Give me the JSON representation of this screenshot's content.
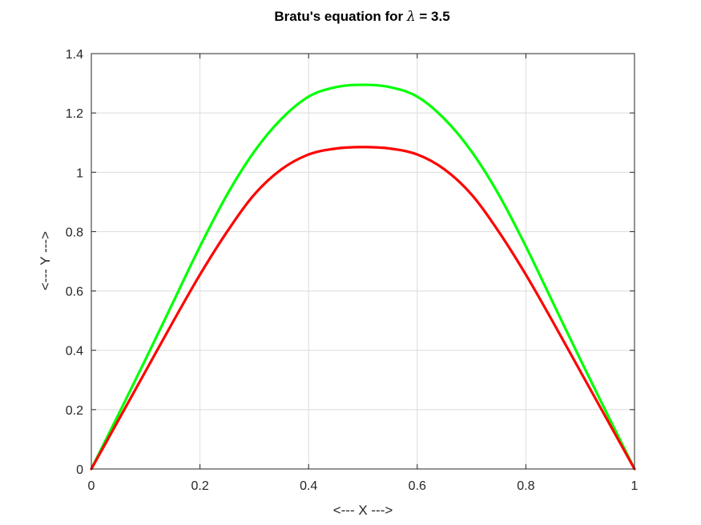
{
  "chart_data": {
    "type": "line",
    "title_prefix": "Bratu's equation for ",
    "title_symbol": "λ",
    "title_suffix": " = 3.5",
    "xlabel": "<--- X --->",
    "ylabel": "<--- Y --->",
    "xlim": [
      0,
      1
    ],
    "ylim": [
      0,
      1.4
    ],
    "xticks": [
      0,
      0.2,
      0.4,
      0.6,
      0.8,
      1
    ],
    "xtick_labels": [
      "0",
      "0.2",
      "0.4",
      "0.6",
      "0.8",
      "1"
    ],
    "yticks": [
      0,
      0.2,
      0.4,
      0.6,
      0.8,
      1,
      1.2,
      1.4
    ],
    "ytick_labels": [
      "0",
      "0.2",
      "0.4",
      "0.6",
      "0.8",
      "1",
      "1.2",
      "1.4"
    ],
    "grid": true,
    "series": [
      {
        "color": "#00ff00",
        "x": [
          0,
          0.05,
          0.1,
          0.15,
          0.2,
          0.25,
          0.3,
          0.35,
          0.4,
          0.45,
          0.5,
          0.55,
          0.6,
          0.65,
          0.7,
          0.75,
          0.8,
          0.85,
          0.9,
          0.95,
          1
        ],
        "y": [
          0,
          0.184,
          0.37,
          0.56,
          0.75,
          0.925,
          1.07,
          1.18,
          1.255,
          1.287,
          1.295,
          1.287,
          1.255,
          1.18,
          1.07,
          0.925,
          0.75,
          0.56,
          0.37,
          0.184,
          0
        ]
      },
      {
        "color": "#ff0000",
        "x": [
          0,
          0.05,
          0.1,
          0.15,
          0.2,
          0.25,
          0.3,
          0.35,
          0.4,
          0.45,
          0.5,
          0.55,
          0.6,
          0.65,
          0.7,
          0.75,
          0.8,
          0.85,
          0.9,
          0.95,
          1
        ],
        "y": [
          0,
          0.165,
          0.33,
          0.495,
          0.655,
          0.8,
          0.925,
          1.01,
          1.06,
          1.08,
          1.085,
          1.08,
          1.06,
          1.01,
          0.925,
          0.8,
          0.655,
          0.495,
          0.33,
          0.165,
          0
        ]
      }
    ]
  }
}
